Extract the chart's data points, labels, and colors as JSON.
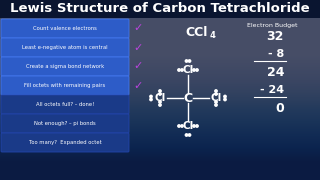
{
  "title": "Lewis Structure of Carbon Tetrachloride",
  "bg_color": "#1e2d6b",
  "bg_dark": "#0d1535",
  "title_color": "#ffffff",
  "title_fontsize": 9.5,
  "steps_highlighted": [
    "Count valence electrons",
    "Least e-negative atom is central",
    "Create a sigma bond network",
    "Fill octets with remaining pairs"
  ],
  "steps_normal": [
    "All octets full? – done!",
    "Not enough? – pi bonds",
    "Too many?  Expanded octet"
  ],
  "highlight_box_color": "#2d5cc8",
  "normal_box_color": "#1a3a88",
  "check_color": "#bb44dd",
  "electron_budget_title": "Electron Budget",
  "budget_lines": [
    "32",
    "- 8",
    "24",
    "- 24",
    "0"
  ],
  "budget_underline_after": [
    1,
    3
  ],
  "text_color": "#ffffff"
}
